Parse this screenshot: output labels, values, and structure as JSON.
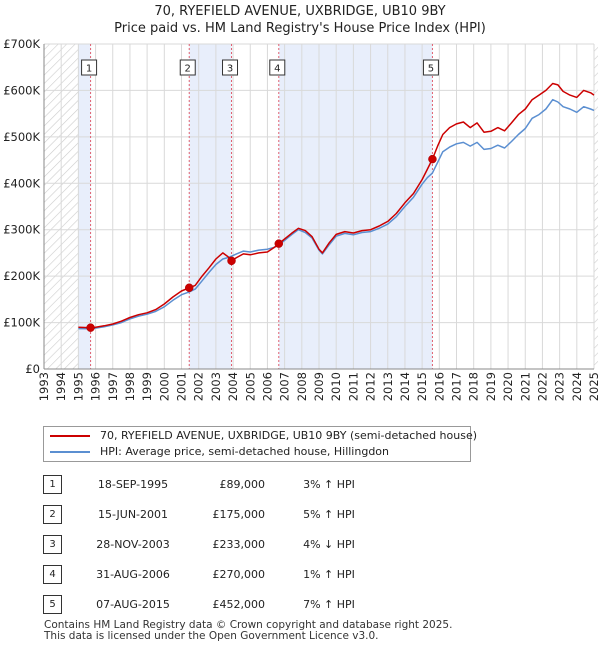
{
  "title_line1": "70, RYEFIELD AVENUE, UXBRIDGE, UB10 9BY",
  "title_line2": "Price paid vs. HM Land Registry's House Price Index (HPI)",
  "colors": {
    "price": "#cc0000",
    "hpi": "#5b8fd1",
    "band": "#e8eefb",
    "hatch": "#cccccc",
    "marker_line": "#e06070"
  },
  "legend": {
    "price_label": "70, RYEFIELD AVENUE, UXBRIDGE, UB10 9BY (semi-detached house)",
    "hpi_label": "HPI: Average price, semi-detached house, Hillingdon"
  },
  "sales": [
    {
      "num": "1",
      "date": "18-SEP-1995",
      "price": "£89,000",
      "hpi": "3% ↑ HPI"
    },
    {
      "num": "2",
      "date": "15-JUN-2001",
      "price": "£175,000",
      "hpi": "5% ↑ HPI"
    },
    {
      "num": "3",
      "date": "28-NOV-2003",
      "price": "£233,000",
      "hpi": "4% ↓ HPI"
    },
    {
      "num": "4",
      "date": "31-AUG-2006",
      "price": "£270,000",
      "hpi": "1% ↑ HPI"
    },
    {
      "num": "5",
      "date": "07-AUG-2015",
      "price": "£452,000",
      "hpi": "7% ↑ HPI"
    }
  ],
  "footer": {
    "line1": "Contains HM Land Registry data © Crown copyright and database right 2025.",
    "line2": "This data is licensed under the Open Government Licence v3.0."
  },
  "chart_data": {
    "type": "line",
    "title": "70, RYEFIELD AVENUE, UXBRIDGE, UB10 9BY — Price paid vs. HM Land Registry's House Price Index (HPI)",
    "xlabel": "",
    "ylabel": "",
    "xlim": [
      1993,
      2025
    ],
    "ylim": [
      0,
      700000
    ],
    "y_ticks": [
      0,
      100000,
      200000,
      300000,
      400000,
      500000,
      600000,
      700000
    ],
    "y_tick_labels": [
      "£0",
      "£100K",
      "£200K",
      "£300K",
      "£400K",
      "£500K",
      "£600K",
      "£700K"
    ],
    "x_ticks": [
      1993,
      1994,
      1995,
      1996,
      1997,
      1998,
      1999,
      2000,
      2001,
      2002,
      2003,
      2004,
      2005,
      2006,
      2007,
      2008,
      2009,
      2010,
      2011,
      2012,
      2013,
      2014,
      2015,
      2016,
      2017,
      2018,
      2019,
      2020,
      2021,
      2022,
      2023,
      2024,
      2025
    ],
    "hatched_ranges": [
      [
        1993,
        1995.0
      ],
      [
        2025.0,
        2025.3
      ]
    ],
    "sale_points": [
      {
        "label": "1",
        "x": 1995.71,
        "y": 89000
      },
      {
        "label": "2",
        "x": 2001.45,
        "y": 175000
      },
      {
        "label": "3",
        "x": 2003.91,
        "y": 233000
      },
      {
        "label": "4",
        "x": 2006.66,
        "y": 270000
      },
      {
        "label": "5",
        "x": 2015.6,
        "y": 452000
      }
    ],
    "series": [
      {
        "name": "70, RYEFIELD AVENUE, UXBRIDGE, UB10 9BY (semi-detached house)",
        "x": [
          1995.0,
          1995.71,
          1996.0,
          1996.5,
          1997.0,
          1997.5,
          1998.0,
          1998.5,
          1999.0,
          1999.5,
          2000.0,
          2000.5,
          2001.0,
          2001.45,
          2001.8,
          2002.2,
          2002.6,
          2003.0,
          2003.4,
          2003.7,
          2003.91,
          2004.2,
          2004.6,
          2005.0,
          2005.5,
          2006.0,
          2006.4,
          2006.66,
          2007.0,
          2007.4,
          2007.8,
          2008.2,
          2008.6,
          2009.0,
          2009.2,
          2009.6,
          2010.0,
          2010.5,
          2011.0,
          2011.5,
          2012.0,
          2012.5,
          2013.0,
          2013.5,
          2014.0,
          2014.5,
          2015.0,
          2015.3,
          2015.6,
          2015.9,
          2016.2,
          2016.6,
          2017.0,
          2017.4,
          2017.8,
          2018.2,
          2018.6,
          2019.0,
          2019.4,
          2019.8,
          2020.2,
          2020.6,
          2021.0,
          2021.4,
          2021.8,
          2022.2,
          2022.6,
          2022.9,
          2023.2,
          2023.6,
          2024.0,
          2024.4,
          2024.8,
          2025.0
        ],
        "y": [
          90000,
          89000,
          90000,
          93000,
          97000,
          103000,
          111000,
          117000,
          121000,
          128000,
          140000,
          155000,
          168000,
          175000,
          180000,
          200000,
          218000,
          237000,
          250000,
          242000,
          233000,
          240000,
          248000,
          246000,
          250000,
          252000,
          262000,
          270000,
          280000,
          292000,
          303000,
          298000,
          285000,
          258000,
          250000,
          272000,
          290000,
          296000,
          293000,
          298000,
          300000,
          308000,
          318000,
          335000,
          358000,
          378000,
          408000,
          430000,
          452000,
          480000,
          505000,
          520000,
          528000,
          532000,
          520000,
          530000,
          510000,
          512000,
          520000,
          513000,
          530000,
          548000,
          560000,
          580000,
          590000,
          600000,
          615000,
          612000,
          598000,
          590000,
          585000,
          600000,
          595000,
          590000
        ],
        "color": "#cc0000"
      },
      {
        "name": "HPI: Average price, semi-detached house, Hillingdon",
        "x": [
          1995.0,
          1995.71,
          1996.0,
          1996.5,
          1997.0,
          1997.5,
          1998.0,
          1998.5,
          1999.0,
          1999.5,
          2000.0,
          2000.5,
          2001.0,
          2001.45,
          2001.8,
          2002.2,
          2002.6,
          2003.0,
          2003.4,
          2003.7,
          2003.91,
          2004.2,
          2004.6,
          2005.0,
          2005.5,
          2006.0,
          2006.4,
          2006.66,
          2007.0,
          2007.4,
          2007.8,
          2008.2,
          2008.6,
          2009.0,
          2009.2,
          2009.6,
          2010.0,
          2010.5,
          2011.0,
          2011.5,
          2012.0,
          2012.5,
          2013.0,
          2013.5,
          2014.0,
          2014.5,
          2015.0,
          2015.3,
          2015.6,
          2015.9,
          2016.2,
          2016.6,
          2017.0,
          2017.4,
          2017.8,
          2018.2,
          2018.6,
          2019.0,
          2019.4,
          2019.8,
          2020.2,
          2020.6,
          2021.0,
          2021.4,
          2021.8,
          2022.2,
          2022.6,
          2022.9,
          2023.2,
          2023.6,
          2024.0,
          2024.4,
          2024.8,
          2025.0
        ],
        "y": [
          87000,
          86500,
          88000,
          91000,
          95000,
          100000,
          108000,
          114000,
          118000,
          124000,
          134000,
          148000,
          160000,
          166000,
          172000,
          190000,
          208000,
          225000,
          237000,
          240000,
          243000,
          248000,
          254000,
          252000,
          256000,
          258000,
          262000,
          267000,
          277000,
          289000,
          300000,
          294000,
          282000,
          256000,
          248000,
          268000,
          286000,
          292000,
          289000,
          294000,
          296000,
          303000,
          312000,
          328000,
          350000,
          370000,
          398000,
          412000,
          422000,
          445000,
          468000,
          478000,
          485000,
          488000,
          480000,
          488000,
          473000,
          475000,
          482000,
          476000,
          490000,
          505000,
          518000,
          540000,
          548000,
          560000,
          580000,
          575000,
          565000,
          560000,
          553000,
          565000,
          560000,
          557000
        ],
        "color": "#5b8fd1"
      }
    ]
  }
}
